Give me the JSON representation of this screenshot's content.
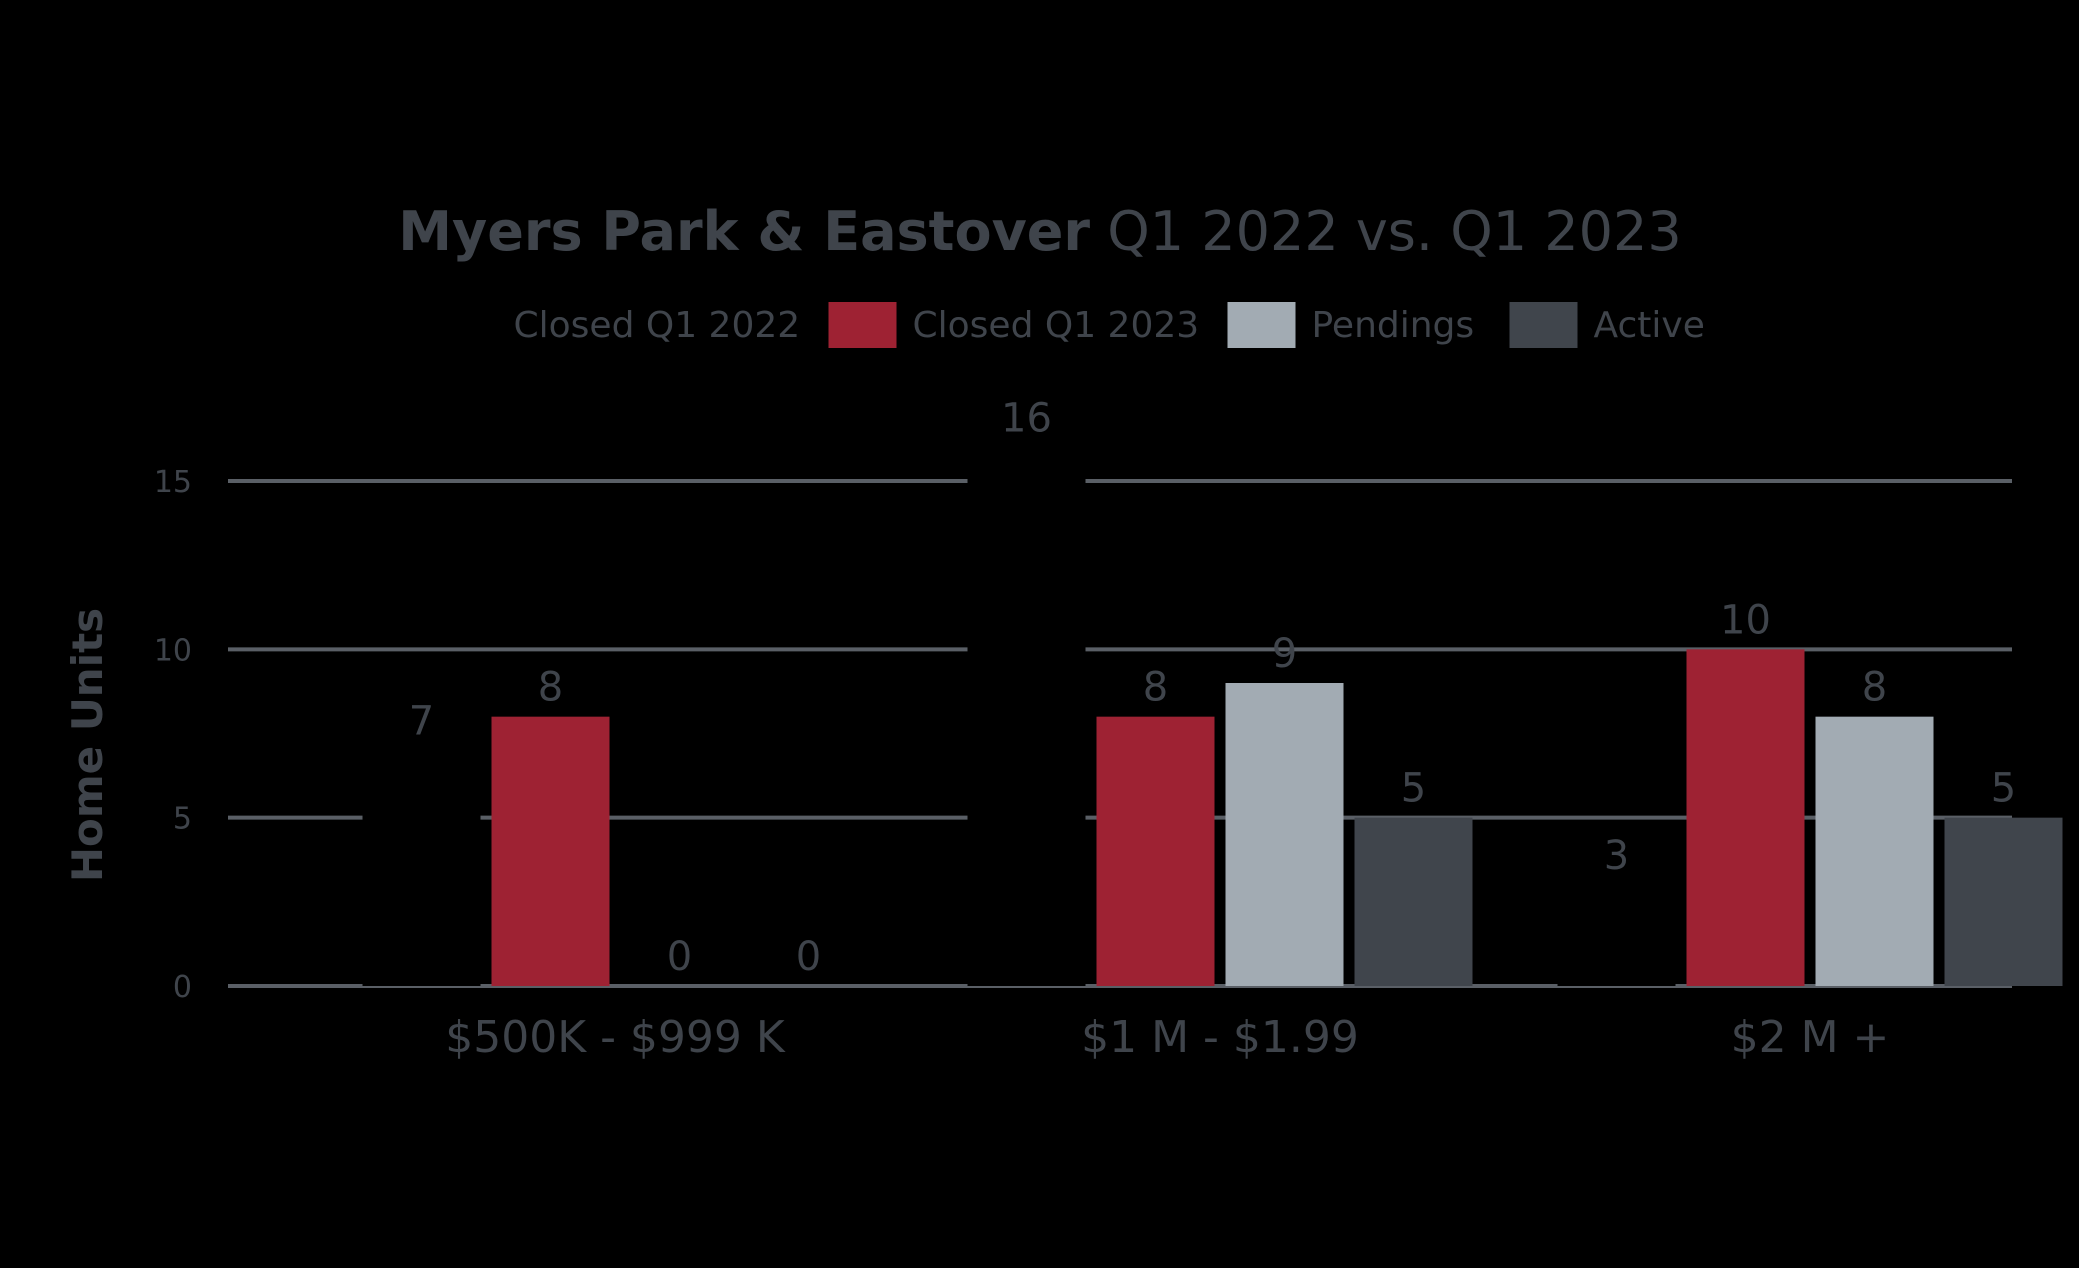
{
  "chart_data": {
    "type": "bar",
    "title_bold": "Myers Park & Eastover",
    "title_rest": " Q1 2022 vs. Q1 2023",
    "ylabel": "Home Units",
    "xlabel": "",
    "ylim": [
      0,
      15
    ],
    "yticks": [
      0,
      5,
      10,
      15
    ],
    "grid": true,
    "legend_position": "top",
    "categories": [
      "$500K - $999 K",
      "$1 M - $1.99",
      "$2 M +"
    ],
    "series": [
      {
        "name": "Closed Q1 2022",
        "color": "#000000",
        "values": [
          7,
          16,
          3
        ]
      },
      {
        "name": "Closed Q1 2023",
        "color": "#9e2233",
        "values": [
          8,
          8,
          10
        ]
      },
      {
        "name": "Pendings",
        "color": "#a2abb3",
        "values": [
          0,
          9,
          8
        ]
      },
      {
        "name": "Active",
        "color": "#40454c",
        "values": [
          0,
          5,
          5
        ]
      }
    ]
  },
  "colors": {
    "background": "#000000",
    "text": "#3f444b",
    "grid": "#5a5f66"
  }
}
